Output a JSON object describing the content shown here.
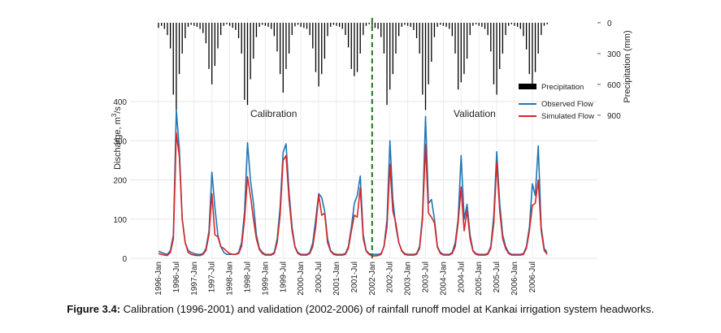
{
  "caption": {
    "label": "Figure 3.4:",
    "text": " Calibration (1996-2001) and validation (2002-2006) of rainfall runoff model at Kankai irrigation system headworks."
  },
  "chart_data": {
    "type": "line",
    "ylabel": "Discharge, m³/s",
    "ylabel_main": "Discharge, m",
    "ylabel_sup": "3",
    "ylabel_tail": "/s",
    "y2label": "Precipitation (mm)",
    "ylim": [
      0,
      400
    ],
    "y2lim_inverted": [
      0,
      900
    ],
    "yticks": [
      "0",
      "100",
      "200",
      "300",
      "400"
    ],
    "y2ticks": [
      "0",
      "300",
      "600",
      "900"
    ],
    "xticks": [
      "1996-Jan",
      "1996-Jul",
      "1997-Jan",
      "1997-Jul",
      "1998-Jan",
      "1998-Jul",
      "1999-Jan",
      "1999-Jul",
      "2000-Jan",
      "2000-Jul",
      "2001-Jan",
      "2001-Jul",
      "2002-Jan",
      "2002-Jul",
      "2003-Jan",
      "2003-Jul",
      "2004-Jan",
      "2004-Jul",
      "2005-Jan",
      "2005-Jul",
      "2006-Jan",
      "2006-Jul"
    ],
    "grid": true,
    "split_month": "2002-Jan",
    "annotations": [
      "Calibration",
      "Validation"
    ],
    "legend": {
      "placement": "top-right",
      "entries": [
        "Precipitation",
        "Observed Flow",
        "Simulated Flow"
      ]
    },
    "colors": {
      "observed": "#1f77b4",
      "simulated": "#d62728",
      "precip": "#000000",
      "split": "#1a7a1a"
    },
    "series": [
      {
        "name": "Observed Flow",
        "values": [
          18,
          15,
          12,
          10,
          20,
          60,
          378,
          280,
          100,
          40,
          20,
          15,
          12,
          10,
          10,
          12,
          25,
          70,
          220,
          130,
          60,
          30,
          15,
          10,
          10,
          10,
          10,
          15,
          40,
          120,
          295,
          200,
          140,
          60,
          25,
          15,
          10,
          10,
          10,
          15,
          50,
          130,
          270,
          292,
          170,
          80,
          30,
          15,
          10,
          10,
          10,
          15,
          40,
          100,
          165,
          155,
          120,
          50,
          20,
          12,
          10,
          10,
          10,
          12,
          30,
          80,
          140,
          160,
          210,
          60,
          20,
          12,
          10,
          10,
          10,
          12,
          30,
          100,
          300,
          150,
          80,
          40,
          20,
          12,
          10,
          10,
          10,
          12,
          30,
          110,
          362,
          140,
          150,
          100,
          30,
          15,
          10,
          10,
          10,
          15,
          40,
          100,
          262,
          100,
          138,
          60,
          20,
          12,
          10,
          10,
          10,
          12,
          30,
          110,
          272,
          140,
          60,
          30,
          15,
          10,
          10,
          10,
          10,
          12,
          30,
          80,
          190,
          160,
          287,
          80,
          25,
          15
        ]
      },
      {
        "name": "Simulated Flow",
        "values": [
          12,
          10,
          8,
          7,
          15,
          50,
          320,
          260,
          100,
          40,
          15,
          10,
          8,
          7,
          7,
          10,
          20,
          60,
          165,
          60,
          55,
          30,
          25,
          18,
          12,
          10,
          10,
          12,
          30,
          100,
          208,
          160,
          100,
          50,
          22,
          12,
          8,
          8,
          8,
          12,
          40,
          110,
          250,
          262,
          150,
          70,
          28,
          12,
          8,
          8,
          8,
          12,
          30,
          80,
          162,
          110,
          115,
          40,
          18,
          10,
          8,
          8,
          8,
          10,
          25,
          70,
          110,
          105,
          180,
          50,
          18,
          10,
          6,
          6,
          7,
          10,
          30,
          80,
          240,
          120,
          90,
          40,
          18,
          10,
          8,
          8,
          8,
          10,
          25,
          100,
          290,
          115,
          105,
          90,
          28,
          12,
          8,
          8,
          8,
          12,
          30,
          90,
          182,
          70,
          122,
          50,
          18,
          10,
          8,
          8,
          8,
          10,
          25,
          90,
          245,
          120,
          50,
          25,
          12,
          8,
          8,
          8,
          8,
          10,
          25,
          70,
          135,
          140,
          200,
          70,
          20,
          10
        ]
      },
      {
        "name": "Precipitation",
        "values": [
          50,
          30,
          60,
          120,
          250,
          700,
          850,
          500,
          300,
          150,
          40,
          20,
          30,
          40,
          60,
          100,
          200,
          450,
          600,
          420,
          250,
          120,
          30,
          15,
          30,
          50,
          70,
          150,
          300,
          750,
          800,
          550,
          350,
          140,
          40,
          20,
          30,
          40,
          60,
          130,
          280,
          500,
          680,
          450,
          300,
          120,
          35,
          20,
          40,
          50,
          60,
          120,
          250,
          480,
          620,
          500,
          350,
          130,
          40,
          20,
          30,
          40,
          60,
          120,
          240,
          450,
          520,
          480,
          300,
          120,
          30,
          15,
          30,
          50,
          60,
          140,
          300,
          800,
          650,
          500,
          300,
          130,
          40,
          20,
          30,
          40,
          70,
          150,
          300,
          700,
          850,
          600,
          380,
          140,
          40,
          20,
          30,
          40,
          60,
          130,
          300,
          650,
          580,
          500,
          350,
          120,
          30,
          15,
          30,
          40,
          60,
          120,
          280,
          600,
          700,
          450,
          300,
          120,
          30,
          15,
          30,
          40,
          60,
          130,
          260,
          500,
          600,
          480,
          300,
          120,
          30,
          15
        ]
      }
    ]
  }
}
